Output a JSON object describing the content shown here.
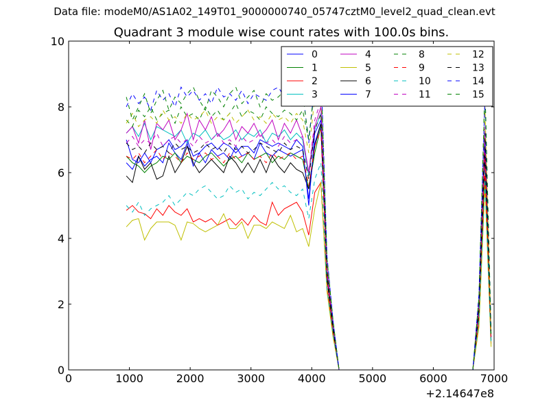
{
  "figure": {
    "suptitle": "Data file: modeM0/AS1A02_149T01_9000000740_05747cztM0_level2_quad_clean.evt",
    "title": "Quadrant 3 module wise count rates with 100.0s bins.",
    "x_offset_label": "+2.14647e8"
  },
  "chart_data": {
    "type": "line",
    "title": "Quadrant 3 module wise count rates with 100.0s bins.",
    "xlabel": "",
    "ylabel": "",
    "xlim": [
      0,
      7000
    ],
    "ylim": [
      0,
      10
    ],
    "x_offset": "+2.14647e8",
    "xticks": [
      0,
      1000,
      2000,
      3000,
      4000,
      5000,
      6000,
      7000
    ],
    "yticks": [
      0,
      2,
      4,
      6,
      8,
      10
    ],
    "grid": false,
    "legend_position": "top-right",
    "x": [
      950,
      1050,
      1150,
      1250,
      1350,
      1450,
      1550,
      1650,
      1750,
      1850,
      1950,
      2050,
      2150,
      2250,
      2350,
      2450,
      2550,
      2650,
      2750,
      2850,
      2950,
      3050,
      3150,
      3250,
      3350,
      3450,
      3550,
      3650,
      3750,
      3850,
      3950,
      4050,
      4150,
      4250,
      4350,
      4450,
      4550,
      4650,
      4750,
      4850,
      4950,
      5050,
      5150,
      5250,
      5350,
      5450,
      5550,
      5650,
      5750,
      5850,
      5950,
      6050,
      6150,
      6250,
      6350,
      6450,
      6550,
      6650,
      6750,
      6850,
      6950
    ],
    "series": [
      {
        "name": "0",
        "color": "#0000ff",
        "dash": "solid",
        "values": [
          6.3,
          6.1,
          6.5,
          6.2,
          6.4,
          6.5,
          6.3,
          6.9,
          6.6,
          6.4,
          6.9,
          6.2,
          6.6,
          6.3,
          6.7,
          6.5,
          6.6,
          6.4,
          6.8,
          6.5,
          6.6,
          6.4,
          6.9,
          6.6,
          6.5,
          6.7,
          6.6,
          6.5,
          6.6,
          6.7,
          5.2,
          6.9,
          7.5,
          2.9,
          1.3,
          0,
          0,
          0,
          0,
          0,
          0,
          0,
          0,
          0,
          0,
          0,
          0,
          0,
          0,
          0,
          0,
          0,
          0,
          0,
          0,
          0,
          0,
          0,
          1.8,
          6.8,
          1.0
        ]
      },
      {
        "name": "1",
        "color": "#008000",
        "dash": "solid",
        "values": [
          6.5,
          6.3,
          6.2,
          6.0,
          6.2,
          6.3,
          6.5,
          6.4,
          6.6,
          6.3,
          6.5,
          6.4,
          6.3,
          6.5,
          6.6,
          6.4,
          6.2,
          6.4,
          6.5,
          6.3,
          6.6,
          6.4,
          6.5,
          6.6,
          6.3,
          6.5,
          6.4,
          6.6,
          6.5,
          6.4,
          5.5,
          6.6,
          7.4,
          2.8,
          1.2,
          0,
          0,
          0,
          0,
          0,
          0,
          0,
          0,
          0,
          0,
          0,
          0,
          0,
          0,
          0,
          0,
          0,
          0,
          0,
          0,
          0,
          0,
          0,
          1.7,
          6.6,
          0.9
        ]
      },
      {
        "name": "2",
        "color": "#ff0000",
        "dash": "solid",
        "values": [
          4.85,
          5.0,
          4.8,
          4.75,
          4.6,
          4.9,
          4.7,
          5.0,
          4.8,
          4.7,
          4.9,
          4.5,
          4.6,
          4.5,
          4.6,
          4.4,
          4.5,
          4.6,
          4.4,
          4.6,
          4.4,
          4.7,
          4.5,
          4.4,
          5.1,
          4.7,
          4.9,
          5.0,
          5.1,
          4.8,
          4.1,
          5.4,
          5.7,
          2.5,
          1.1,
          0,
          0,
          0,
          0,
          0,
          0,
          0,
          0,
          0,
          0,
          0,
          0,
          0,
          0,
          0,
          0,
          0,
          0,
          0,
          0,
          0,
          0,
          0,
          1.4,
          5.9,
          0.8
        ]
      },
      {
        "name": "3",
        "color": "#00bfbf",
        "dash": "solid",
        "values": [
          7.2,
          7.4,
          7.1,
          7.5,
          7.0,
          7.4,
          7.3,
          7.2,
          7.1,
          7.3,
          6.9,
          7.2,
          7.1,
          7.3,
          7.0,
          7.2,
          7.0,
          7.1,
          7.3,
          7.0,
          7.2,
          7.1,
          7.3,
          6.9,
          7.2,
          7.1,
          7.3,
          7.0,
          7.2,
          7.0,
          5.9,
          7.3,
          7.8,
          3.0,
          1.3,
          0,
          0,
          0,
          0,
          0,
          0,
          0,
          0,
          0,
          0,
          0,
          0,
          0,
          0,
          0,
          0,
          0,
          0,
          0,
          0,
          0,
          0,
          0,
          1.9,
          7.0,
          1.0
        ]
      },
      {
        "name": "4",
        "color": "#bf00bf",
        "dash": "solid",
        "values": [
          7.2,
          7.4,
          6.9,
          7.6,
          6.7,
          7.5,
          7.3,
          7.6,
          7.0,
          7.3,
          7.8,
          7.0,
          7.6,
          7.3,
          7.7,
          7.1,
          7.3,
          7.6,
          7.0,
          7.4,
          7.2,
          7.5,
          7.1,
          7.3,
          7.6,
          7.0,
          7.5,
          7.2,
          7.6,
          7.1,
          6.0,
          7.4,
          8.0,
          3.1,
          1.3,
          0,
          0,
          0,
          0,
          0,
          0,
          0,
          0,
          0,
          0,
          0,
          0,
          0,
          0,
          0,
          0,
          0,
          0,
          0,
          0,
          0,
          0,
          0,
          2.0,
          7.2,
          1.0
        ]
      },
      {
        "name": "5",
        "color": "#bfbf00",
        "dash": "solid",
        "values": [
          4.35,
          4.55,
          4.6,
          3.95,
          4.3,
          4.5,
          4.5,
          4.5,
          4.4,
          3.95,
          4.5,
          4.45,
          4.3,
          4.2,
          4.3,
          4.4,
          4.75,
          4.3,
          4.3,
          4.5,
          4.0,
          4.4,
          4.4,
          4.3,
          4.5,
          4.4,
          4.3,
          4.7,
          4.2,
          4.3,
          3.75,
          4.9,
          5.7,
          2.4,
          1.0,
          0,
          0,
          0,
          0,
          0,
          0,
          0,
          0,
          0,
          0,
          0,
          0,
          0,
          0,
          0,
          0,
          0,
          0,
          0,
          0,
          0,
          0,
          0,
          1.3,
          5.6,
          0.7
        ]
      },
      {
        "name": "6",
        "color": "#000000",
        "dash": "solid",
        "values": [
          5.9,
          5.7,
          6.5,
          6.1,
          6.3,
          5.8,
          5.9,
          6.5,
          6.0,
          6.3,
          6.8,
          6.3,
          6.0,
          6.2,
          6.4,
          6.2,
          6.0,
          6.5,
          6.3,
          6.0,
          6.3,
          6.0,
          6.4,
          6.0,
          6.5,
          6.2,
          6.0,
          6.3,
          6.1,
          6.0,
          5.5,
          6.8,
          7.5,
          2.8,
          1.2,
          0,
          0,
          0,
          0,
          0,
          0,
          0,
          0,
          0,
          0,
          0,
          0,
          0,
          0,
          0,
          0,
          0,
          0,
          0,
          0,
          0,
          0,
          0,
          1.7,
          6.5,
          0.9
        ]
      },
      {
        "name": "7",
        "color": "#0000ff",
        "dash": "solid",
        "values": [
          7.0,
          6.4,
          6.3,
          6.6,
          6.3,
          6.7,
          6.8,
          7.0,
          6.7,
          6.8,
          7.0,
          6.5,
          6.6,
          6.8,
          6.9,
          6.7,
          6.9,
          6.8,
          6.6,
          6.8,
          6.8,
          6.6,
          7.0,
          6.9,
          6.8,
          6.9,
          6.8,
          6.7,
          7.0,
          6.8,
          5.0,
          7.2,
          7.6,
          3.0,
          1.3,
          0,
          0,
          0,
          0,
          0,
          0,
          0,
          0,
          0,
          0,
          0,
          0,
          0,
          0,
          0,
          0,
          0,
          0,
          0,
          0,
          0,
          0,
          0,
          1.9,
          7.0,
          1.0
        ]
      },
      {
        "name": "8",
        "color": "#008000",
        "dash": "dashed",
        "values": [
          7.6,
          7.4,
          7.9,
          7.7,
          8.0,
          7.6,
          7.8,
          7.9,
          7.5,
          8.0,
          7.7,
          7.8,
          7.6,
          8.0,
          7.7,
          7.9,
          7.6,
          7.8,
          8.1,
          7.7,
          7.9,
          7.8,
          7.6,
          8.0,
          7.8,
          7.7,
          7.9,
          7.8,
          7.6,
          7.9,
          7.0,
          8.6,
          9.0,
          3.4,
          1.5,
          0,
          0,
          0,
          0,
          0,
          0,
          0,
          0,
          0,
          0,
          0,
          0,
          0,
          0,
          0,
          0,
          0,
          0,
          0,
          0,
          0,
          0,
          0,
          2.2,
          8.6,
          1.1
        ]
      },
      {
        "name": "9",
        "color": "#ff0000",
        "dash": "dashed",
        "values": [
          6.5,
          6.4,
          6.6,
          6.3,
          6.5,
          6.7,
          6.4,
          6.6,
          6.5,
          6.3,
          6.6,
          6.4,
          6.5,
          6.6,
          6.4,
          6.5,
          6.3,
          6.6,
          6.4,
          6.5,
          6.6,
          6.4,
          6.5,
          6.3,
          6.6,
          6.4,
          6.5,
          6.6,
          6.4,
          6.5,
          5.6,
          6.8,
          7.3,
          2.8,
          1.2,
          0,
          0,
          0,
          0,
          0,
          0,
          0,
          0,
          0,
          0,
          0,
          0,
          0,
          0,
          0,
          0,
          0,
          0,
          0,
          0,
          0,
          0,
          0,
          1.7,
          6.6,
          0.9
        ]
      },
      {
        "name": "10",
        "color": "#00bfbf",
        "dash": "dashed",
        "values": [
          5.0,
          4.8,
          5.1,
          4.7,
          4.9,
          5.0,
          5.1,
          5.3,
          5.0,
          5.2,
          5.4,
          5.3,
          5.5,
          5.6,
          5.4,
          5.2,
          5.3,
          5.6,
          5.4,
          5.5,
          5.2,
          5.4,
          5.3,
          5.5,
          5.7,
          5.5,
          5.6,
          5.4,
          5.3,
          5.5,
          4.6,
          5.8,
          6.3,
          2.5,
          1.1,
          0,
          0,
          0,
          0,
          0,
          0,
          0,
          0,
          0,
          0,
          0,
          0,
          0,
          0,
          0,
          0,
          0,
          0,
          0,
          0,
          0,
          0,
          0,
          1.5,
          5.8,
          0.8
        ]
      },
      {
        "name": "11",
        "color": "#bf00bf",
        "dash": "dashed",
        "values": [
          6.9,
          7.1,
          6.8,
          7.0,
          6.9,
          7.2,
          6.8,
          7.0,
          7.1,
          6.9,
          7.0,
          6.8,
          7.1,
          6.9,
          7.0,
          7.2,
          6.9,
          7.0,
          6.8,
          7.1,
          6.9,
          7.0,
          7.2,
          6.9,
          7.0,
          6.8,
          7.1,
          6.9,
          7.0,
          7.1,
          6.0,
          7.6,
          8.2,
          3.1,
          1.3,
          0,
          0,
          0,
          0,
          0,
          0,
          0,
          0,
          0,
          0,
          0,
          0,
          0,
          0,
          0,
          0,
          0,
          0,
          0,
          0,
          0,
          0,
          0,
          2.0,
          7.4,
          1.0
        ]
      },
      {
        "name": "12",
        "color": "#bfbf00",
        "dash": "dashed",
        "values": [
          7.5,
          7.8,
          7.4,
          7.6,
          7.7,
          7.5,
          7.9,
          7.6,
          7.7,
          7.5,
          7.8,
          7.6,
          7.7,
          7.9,
          7.5,
          7.7,
          7.6,
          7.8,
          7.5,
          7.7,
          7.9,
          7.6,
          7.7,
          7.5,
          7.8,
          7.6,
          7.7,
          7.5,
          7.8,
          7.6,
          6.6,
          8.3,
          8.7,
          3.3,
          1.4,
          0,
          0,
          0,
          0,
          0,
          0,
          0,
          0,
          0,
          0,
          0,
          0,
          0,
          0,
          0,
          0,
          0,
          0,
          0,
          0,
          0,
          0,
          0,
          2.1,
          8.0,
          1.1
        ]
      },
      {
        "name": "13",
        "color": "#000000",
        "dash": "dashed",
        "values": [
          6.9,
          6.7,
          6.8,
          6.6,
          6.9,
          6.7,
          6.8,
          6.6,
          6.9,
          6.7,
          6.8,
          6.6,
          6.7,
          6.9,
          6.7,
          6.8,
          6.6,
          6.9,
          6.7,
          6.8,
          6.6,
          6.7,
          6.9,
          6.8,
          6.7,
          6.6,
          6.9,
          6.7,
          6.8,
          6.7,
          5.8,
          7.3,
          7.8,
          3.0,
          1.3,
          0,
          0,
          0,
          0,
          0,
          0,
          0,
          0,
          0,
          0,
          0,
          0,
          0,
          0,
          0,
          0,
          0,
          0,
          0,
          0,
          0,
          0,
          0,
          1.9,
          7.2,
          1.0
        ]
      },
      {
        "name": "14",
        "color": "#0000ff",
        "dash": "dashed",
        "values": [
          8.0,
          8.4,
          8.1,
          8.3,
          7.9,
          8.5,
          8.2,
          8.4,
          8.0,
          8.6,
          8.3,
          8.5,
          8.2,
          8.4,
          8.1,
          8.6,
          8.3,
          8.4,
          8.2,
          8.5,
          8.1,
          8.4,
          8.3,
          8.2,
          8.5,
          8.6,
          8.3,
          9.0,
          8.9,
          8.5,
          6.9,
          8.8,
          9.3,
          3.5,
          1.5,
          0,
          0,
          0,
          0,
          0,
          0,
          0,
          0,
          0,
          0,
          0,
          0,
          0,
          0,
          0,
          0,
          0,
          0,
          0,
          0,
          0,
          0,
          0,
          2.3,
          8.3,
          1.2
        ]
      },
      {
        "name": "15",
        "color": "#008000",
        "dash": "dashed",
        "values": [
          8.3,
          7.6,
          8.0,
          8.4,
          7.8,
          8.2,
          8.5,
          7.9,
          8.3,
          8.1,
          8.4,
          8.6,
          8.2,
          7.9,
          8.5,
          8.3,
          8.0,
          8.4,
          8.6,
          8.1,
          8.3,
          8.5,
          8.0,
          8.4,
          8.2,
          8.3,
          8.5,
          8.1,
          8.3,
          8.4,
          7.0,
          8.7,
          9.1,
          3.4,
          1.5,
          0,
          0,
          0,
          0,
          0,
          0,
          0,
          0,
          0,
          0,
          0,
          0,
          0,
          0,
          0,
          0,
          0,
          0,
          0,
          0,
          0,
          0,
          0,
          2.2,
          8.6,
          1.1
        ]
      }
    ]
  }
}
